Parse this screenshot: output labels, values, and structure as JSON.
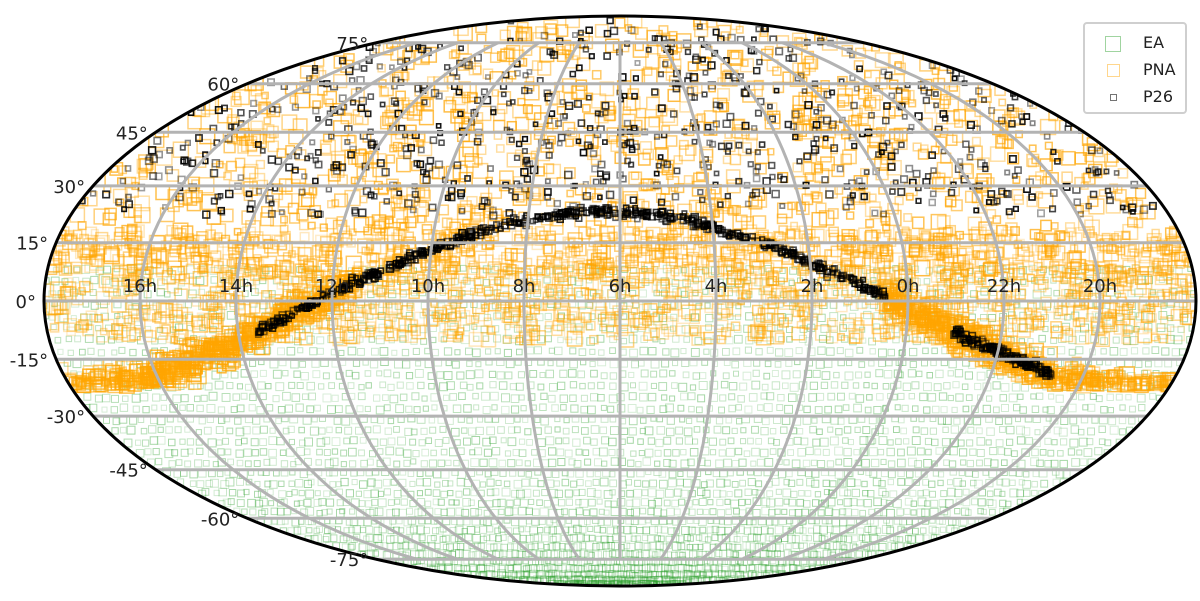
{
  "chart_data": {
    "type": "scatter",
    "projection": "mollweide",
    "grid": true,
    "legend_position": "top-right",
    "dec_tick_labels": [
      "75°",
      "60°",
      "45°",
      "30°",
      "15°",
      "0°",
      "-15°",
      "-30°",
      "-45°",
      "-60°",
      "-75°"
    ],
    "ra_tick_labels": [
      "16h",
      "14h",
      "12h",
      "10h",
      "8h",
      "6h",
      "4h",
      "2h",
      "0h",
      "22h",
      "20h"
    ],
    "series": [
      {
        "name": "EA",
        "marker": "square",
        "color": "#2ca02c",
        "coverage": "uniform sky coverage for dec ≤ 10°"
      },
      {
        "name": "PNA",
        "marker": "square",
        "color": "#ffa500",
        "coverage": "dec ≥ -20°, concentrated along the Galactic plane"
      },
      {
        "name": "P26",
        "marker": "square",
        "color": "#000000",
        "coverage": "northern sky sources and a dense band along the Galactic plane"
      }
    ]
  }
}
